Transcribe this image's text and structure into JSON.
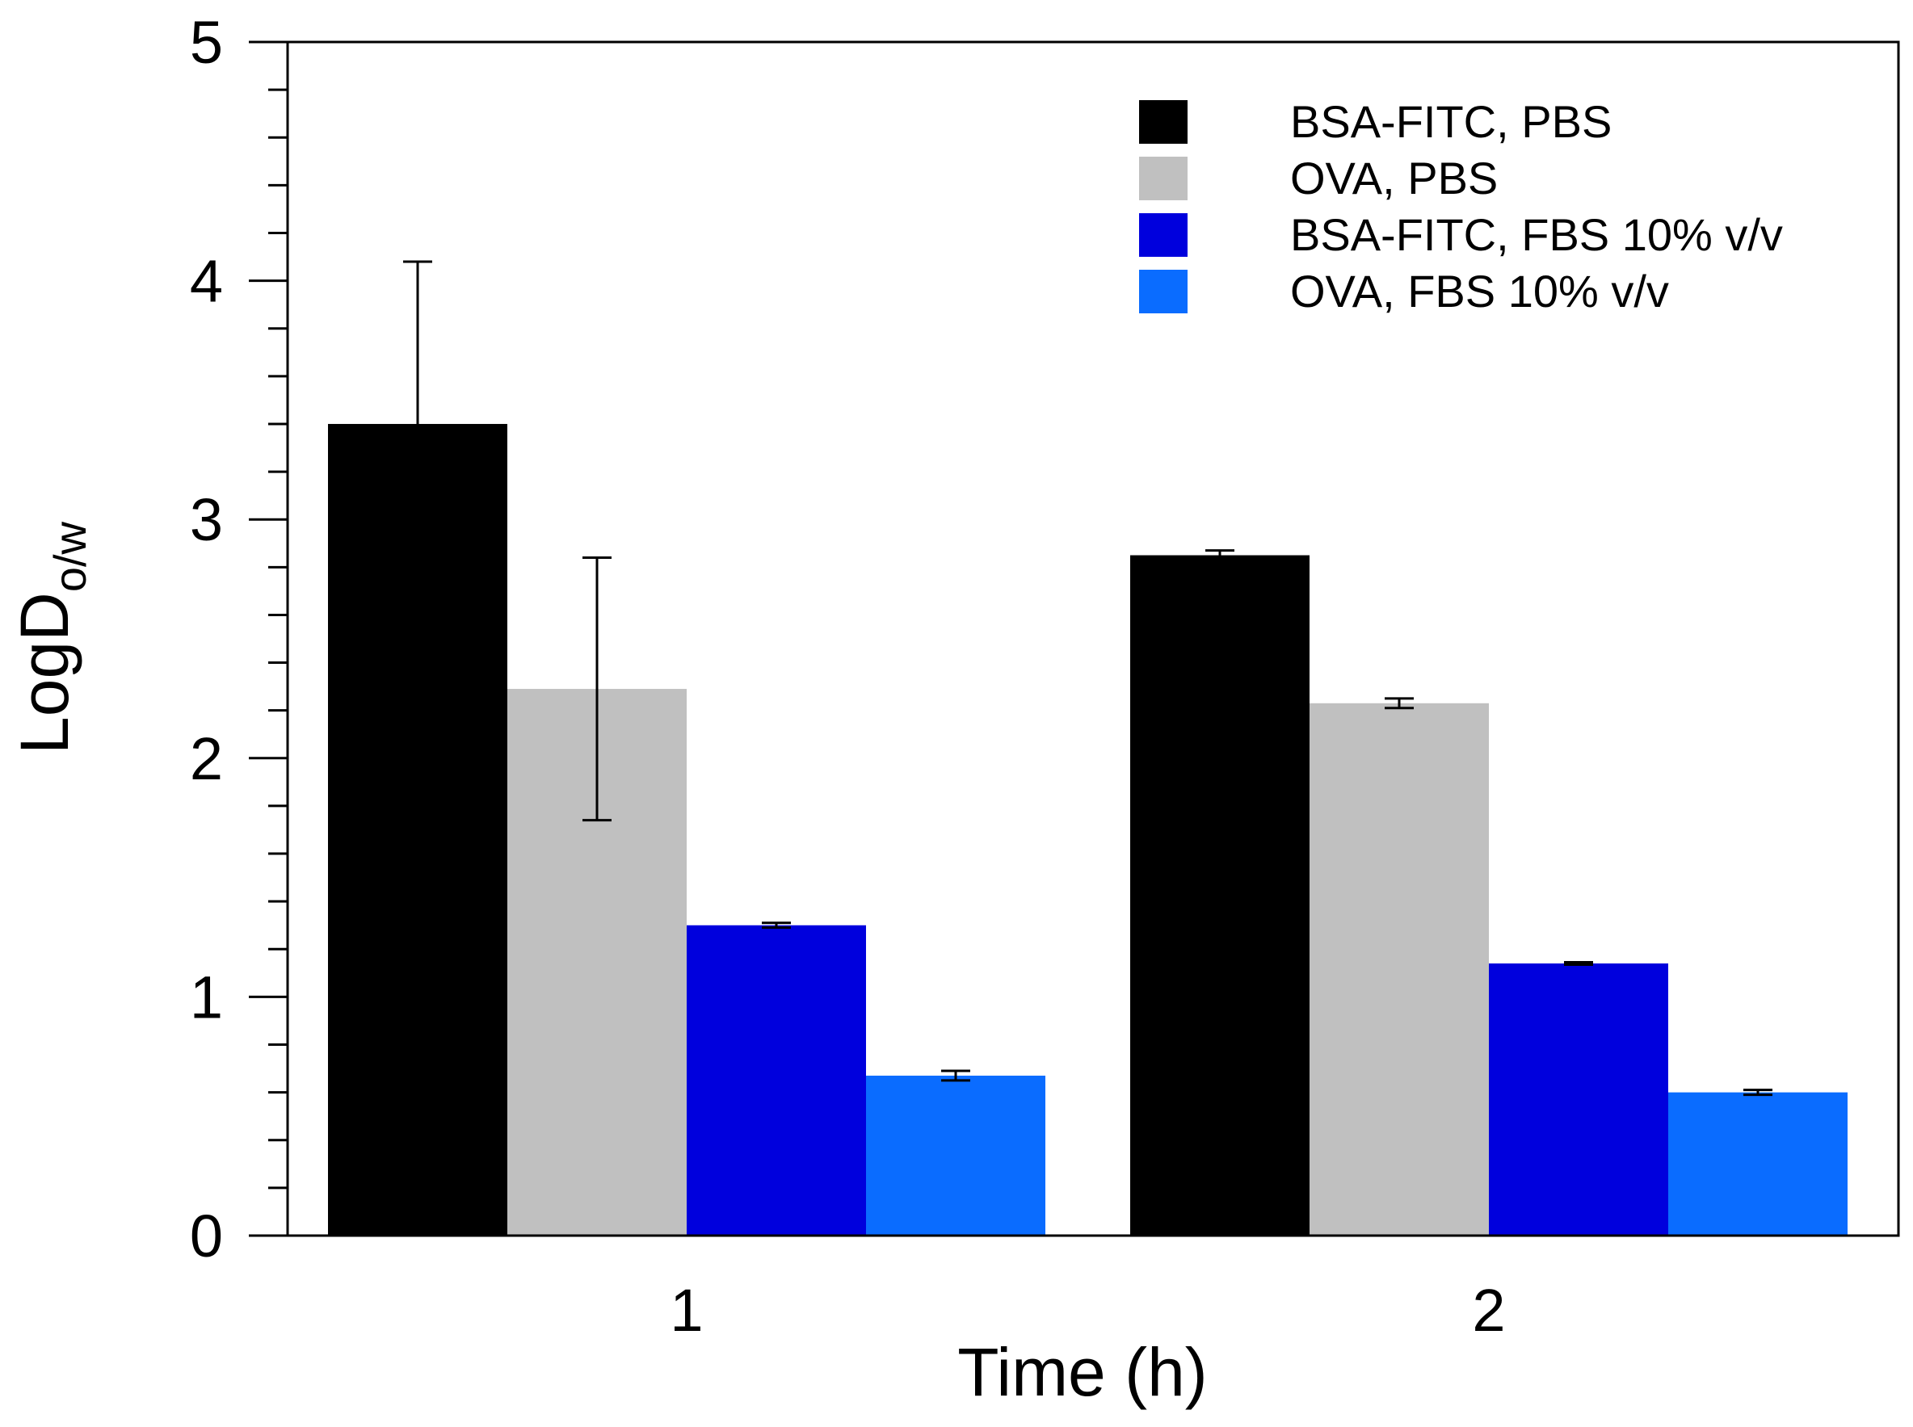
{
  "chart_data": {
    "type": "bar",
    "categories": [
      "1",
      "2"
    ],
    "series": [
      {
        "name": "BSA-FITC, PBS",
        "color": "#000000",
        "values": [
          3.4,
          2.85
        ],
        "errors": [
          0.68,
          0.02
        ]
      },
      {
        "name": "OVA, PBS",
        "color": "#c0c0c0",
        "values": [
          2.29,
          2.23
        ],
        "errors": [
          0.55,
          0.02
        ]
      },
      {
        "name": "BSA-FITC, FBS 10% v/v",
        "color": "#0000dd",
        "values": [
          1.3,
          1.14
        ],
        "errors": [
          0.01,
          0.005
        ]
      },
      {
        "name": "OVA, FBS 10% v/v",
        "color": "#0a6cff",
        "values": [
          0.67,
          0.6
        ],
        "errors": [
          0.02,
          0.01
        ]
      }
    ],
    "xlabel": "Time (h)",
    "ylabel": "LogD",
    "ylabel_subscript": "o/w",
    "ylim": [
      0,
      5
    ],
    "yticks": [
      "0",
      "1",
      "2",
      "3",
      "4",
      "5"
    ],
    "y_minor_step": 0.2,
    "grid": false,
    "legend_position": "top-right"
  }
}
